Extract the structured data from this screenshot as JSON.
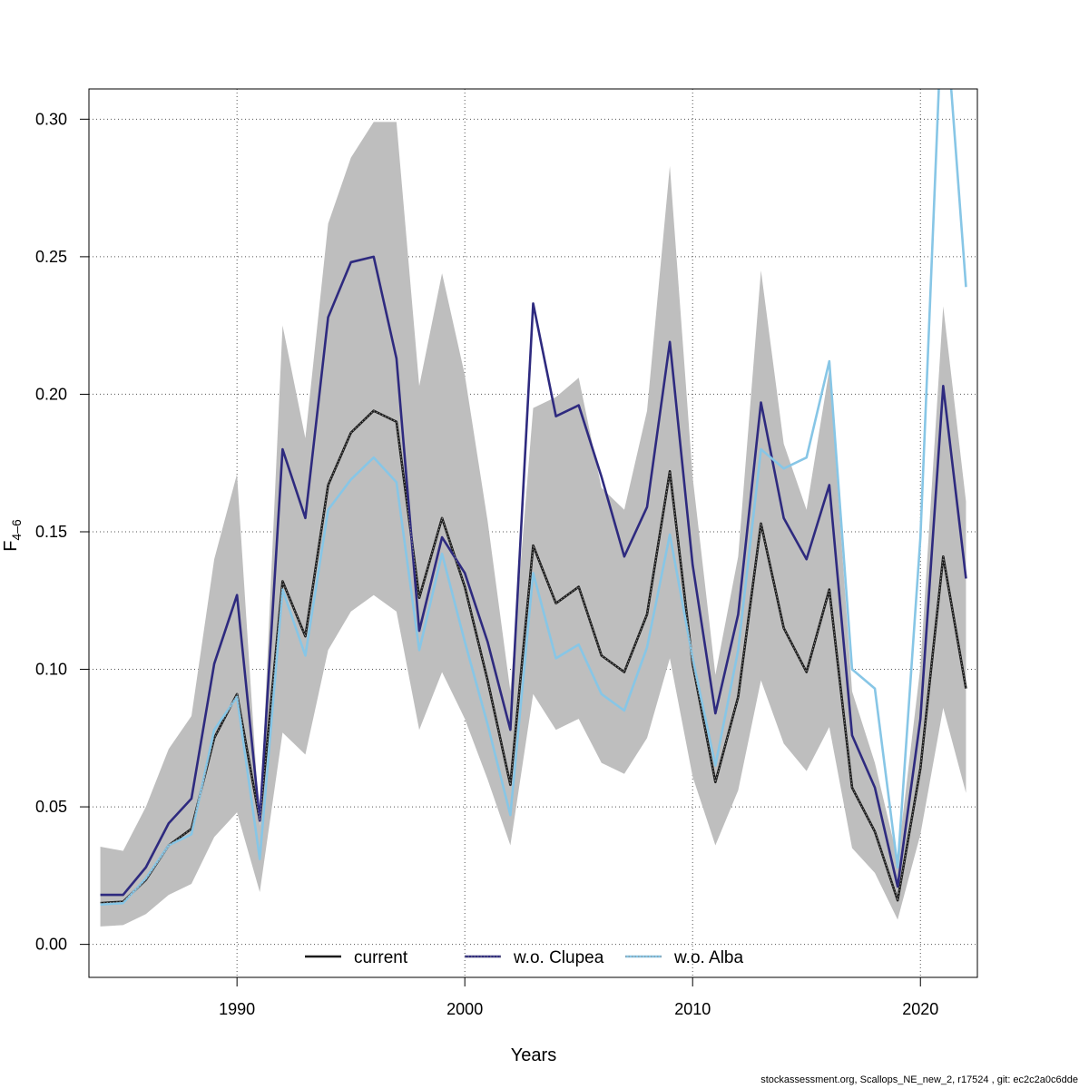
{
  "chart_data": {
    "type": "line",
    "xlabel": "Years",
    "ylabel_main": "F",
    "ylabel_sub": "4–6",
    "xlim": [
      1983.5,
      2022.5
    ],
    "ylim": [
      -0.012,
      0.311
    ],
    "xticks": [
      1990,
      2000,
      2010,
      2020
    ],
    "yticks": [
      0.0,
      0.05,
      0.1,
      0.15,
      0.2,
      0.25,
      0.3
    ],
    "ytick_labels": [
      "0.00",
      "0.05",
      "0.10",
      "0.15",
      "0.20",
      "0.25",
      "0.30"
    ],
    "grid": true,
    "legend_position": "bottom",
    "x": [
      1984,
      1985,
      1986,
      1987,
      1988,
      1989,
      1990,
      1991,
      1992,
      1993,
      1994,
      1995,
      1996,
      1997,
      1998,
      1999,
      2000,
      2001,
      2002,
      2003,
      2004,
      2005,
      2006,
      2007,
      2008,
      2009,
      2010,
      2011,
      2012,
      2013,
      2014,
      2015,
      2016,
      2017,
      2018,
      2019,
      2020,
      2021,
      2022
    ],
    "band": {
      "color": "#bebebe",
      "lower": [
        0.0065,
        0.007,
        0.011,
        0.018,
        0.022,
        0.039,
        0.048,
        0.019,
        0.077,
        0.069,
        0.107,
        0.121,
        0.127,
        0.121,
        0.078,
        0.099,
        0.082,
        0.06,
        0.036,
        0.091,
        0.078,
        0.082,
        0.066,
        0.062,
        0.075,
        0.104,
        0.061,
        0.036,
        0.056,
        0.096,
        0.073,
        0.063,
        0.079,
        0.035,
        0.026,
        0.009,
        0.04,
        0.086,
        0.055
      ],
      "upper": [
        0.0355,
        0.034,
        0.05,
        0.071,
        0.083,
        0.14,
        0.171,
        0.043,
        0.225,
        0.184,
        0.262,
        0.286,
        0.299,
        0.299,
        0.203,
        0.244,
        0.207,
        0.154,
        0.092,
        0.195,
        0.199,
        0.206,
        0.166,
        0.158,
        0.194,
        0.283,
        0.17,
        0.098,
        0.141,
        0.245,
        0.182,
        0.158,
        0.209,
        0.092,
        0.066,
        0.031,
        0.101,
        0.232,
        0.161
      ]
    },
    "series": [
      {
        "name": "current",
        "color": "#1a1a1a",
        "values": [
          0.015,
          0.0155,
          0.0235,
          0.036,
          0.042,
          0.075,
          0.091,
          0.045,
          0.132,
          0.112,
          0.167,
          0.186,
          0.194,
          0.19,
          0.126,
          0.155,
          0.13,
          0.096,
          0.058,
          0.145,
          0.124,
          0.13,
          0.105,
          0.099,
          0.12,
          0.172,
          0.102,
          0.059,
          0.09,
          0.153,
          0.115,
          0.099,
          0.129,
          0.057,
          0.041,
          0.016,
          0.064,
          0.141,
          0.093
        ]
      },
      {
        "name": "w.o. Clupea",
        "color": "#2e2a7f",
        "values": [
          0.018,
          0.018,
          0.028,
          0.044,
          0.053,
          0.102,
          0.127,
          0.045,
          0.18,
          0.155,
          0.228,
          0.248,
          0.25,
          0.213,
          0.114,
          0.148,
          0.135,
          0.11,
          0.078,
          0.233,
          0.192,
          0.196,
          0.17,
          0.141,
          0.159,
          0.219,
          0.138,
          0.084,
          0.12,
          0.197,
          0.155,
          0.14,
          0.167,
          0.076,
          0.057,
          0.021,
          0.082,
          0.203,
          0.133
        ]
      },
      {
        "name": "w.o. Alba",
        "color": "#87c6e6",
        "values": [
          0.0145,
          0.015,
          0.024,
          0.036,
          0.04,
          0.078,
          0.09,
          0.031,
          0.129,
          0.105,
          0.158,
          0.169,
          0.177,
          0.168,
          0.107,
          0.142,
          0.11,
          0.08,
          0.047,
          0.135,
          0.104,
          0.109,
          0.091,
          0.085,
          0.108,
          0.149,
          0.104,
          0.065,
          0.107,
          0.18,
          0.173,
          0.177,
          0.212,
          0.1,
          0.093,
          0.028,
          0.148,
          0.35,
          0.239
        ]
      }
    ]
  },
  "footer": {
    "text": "stockassessment.org, Scallops_NE_new_2, r17524 , git: ec2c2a0c6dde"
  }
}
